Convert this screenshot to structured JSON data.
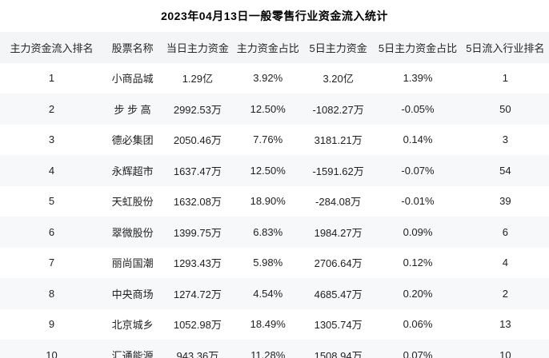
{
  "title": "2023年04月13日一般零售行业资金流入统计",
  "colors": {
    "background": "#ffffff",
    "header_bg": "#f4f5f6",
    "row_alt_bg": "#f7f8fa",
    "text": "#1f1f1f",
    "title_text": "#000000"
  },
  "chart_data": {
    "type": "table",
    "title": "2023年04月13日一般零售行业资金流入统计",
    "columns": [
      "主力资金流入排名",
      "股票名称",
      "当日主力资金",
      "主力资金占比",
      "5日主力资金",
      "5日主力资金占比",
      "5日流入行业排名"
    ],
    "rows": [
      [
        "1",
        "小商品城",
        "1.29亿",
        "3.92%",
        "3.20亿",
        "1.39%",
        "1"
      ],
      [
        "2",
        "步 步 高",
        "2992.53万",
        "12.50%",
        "-1082.27万",
        "-0.05%",
        "50"
      ],
      [
        "3",
        "德必集团",
        "2050.46万",
        "7.76%",
        "3181.21万",
        "0.14%",
        "3"
      ],
      [
        "4",
        "永辉超市",
        "1637.47万",
        "12.50%",
        "-1591.62万",
        "-0.07%",
        "54"
      ],
      [
        "5",
        "天虹股份",
        "1632.08万",
        "18.90%",
        "-284.08万",
        "-0.01%",
        "39"
      ],
      [
        "6",
        "翠微股份",
        "1399.75万",
        "6.83%",
        "1984.27万",
        "0.09%",
        "6"
      ],
      [
        "7",
        "丽尚国潮",
        "1293.43万",
        "5.98%",
        "2706.64万",
        "0.12%",
        "4"
      ],
      [
        "8",
        "中央商场",
        "1274.72万",
        "4.54%",
        "4685.47万",
        "0.20%",
        "2"
      ],
      [
        "9",
        "北京城乡",
        "1052.98万",
        "18.49%",
        "1305.74万",
        "0.06%",
        "13"
      ],
      [
        "10",
        "汇通能源",
        "943.36万",
        "11.28%",
        "1508.94万",
        "0.07%",
        "10"
      ]
    ],
    "layout": {
      "zebra_striping": true,
      "grid": false,
      "header_position": "top",
      "cell_alignment": "center"
    }
  }
}
